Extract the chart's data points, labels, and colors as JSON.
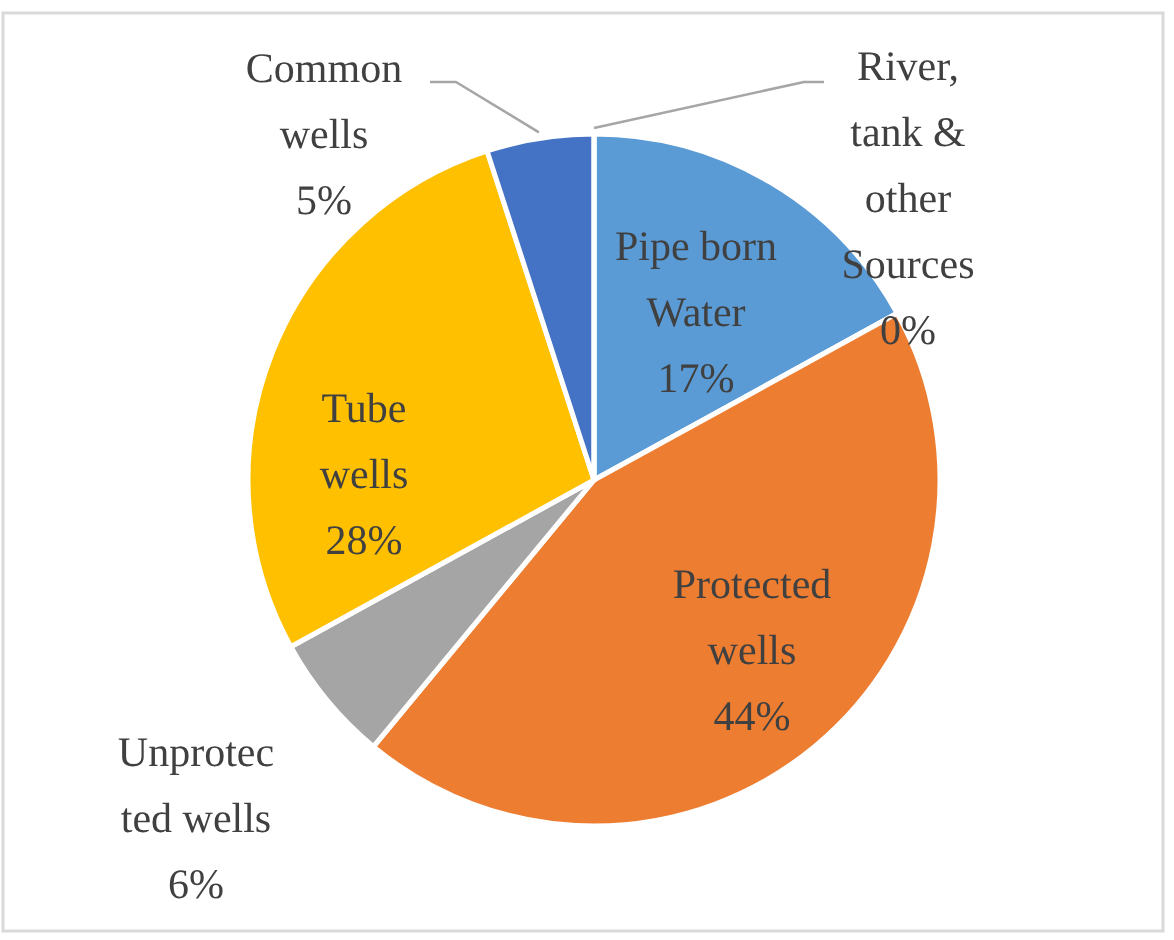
{
  "chart_data": {
    "type": "pie",
    "categories": [
      "Pipe born\nWater",
      "Protected\nwells",
      "Unprotec\nted wells",
      "Tube\nwells",
      "Common\nwells",
      "River,\ntank &\nother\nSources"
    ],
    "values": [
      17,
      44,
      6,
      28,
      5,
      0
    ],
    "value_labels": [
      "17%",
      "44%",
      "6%",
      "28%",
      "5%",
      "0%"
    ],
    "colors": [
      "#5b9bd5",
      "#ed7d31",
      "#a5a5a5",
      "#ffc000",
      "#4472c4",
      "#70ad47"
    ]
  }
}
